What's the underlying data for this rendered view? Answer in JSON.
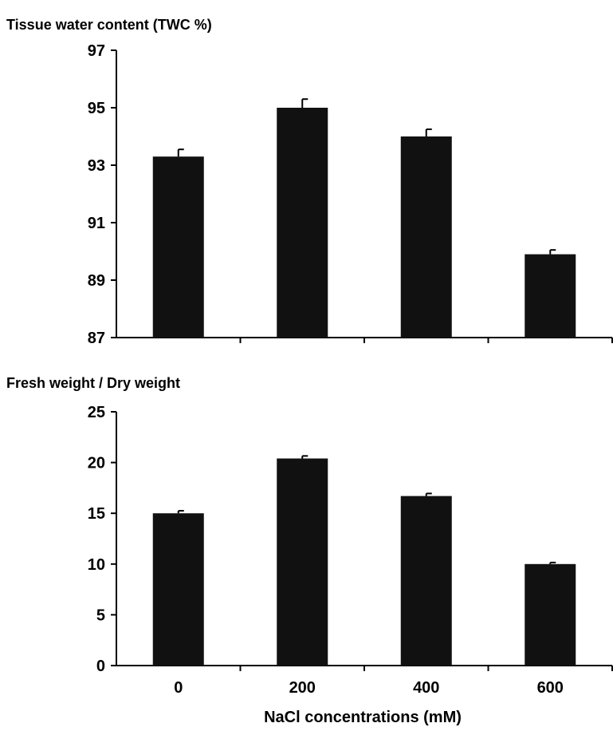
{
  "chart_data": [
    {
      "type": "bar",
      "title": "",
      "ylabel": "Tissue water content (TWC %)",
      "xlabel": "",
      "categories": [
        "0",
        "200",
        "400",
        "600"
      ],
      "values": [
        93.3,
        95.0,
        94.0,
        89.9
      ],
      "errors": [
        0.25,
        0.3,
        0.25,
        0.15
      ],
      "ylim": [
        87,
        97
      ],
      "yticks": [
        "87",
        "89",
        "91",
        "93",
        "95",
        "97"
      ],
      "show_x_tick_labels": false,
      "bar_color": "#111111",
      "grid": false,
      "legend": "none"
    },
    {
      "type": "bar",
      "title": "",
      "ylabel": "Fresh weight / Dry weight",
      "xlabel": "NaCl concentrations (mM)",
      "categories": [
        "0",
        "200",
        "400",
        "600"
      ],
      "values": [
        15.0,
        20.4,
        16.7,
        10.0
      ],
      "errors": [
        0.25,
        0.25,
        0.25,
        0.15
      ],
      "ylim": [
        0,
        25
      ],
      "yticks": [
        "0",
        "5",
        "10",
        "15",
        "20",
        "25"
      ],
      "show_x_tick_labels": true,
      "bar_color": "#111111",
      "grid": false,
      "legend": "none"
    }
  ]
}
